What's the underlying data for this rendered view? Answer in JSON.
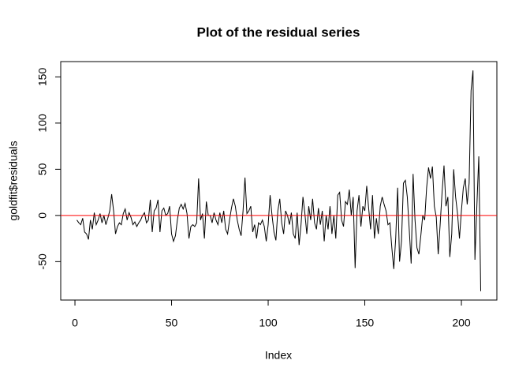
{
  "chart_data": {
    "type": "line",
    "title": "Plot of the residual series",
    "x_label": "Index",
    "y_label": "goldfit$residuals",
    "x": [
      1,
      2,
      3,
      4,
      5,
      6,
      7,
      8,
      9,
      10,
      11,
      12,
      13,
      14,
      15,
      16,
      17,
      18,
      19,
      20,
      21,
      22,
      23,
      24,
      25,
      26,
      27,
      28,
      29,
      30,
      31,
      32,
      33,
      34,
      35,
      36,
      37,
      38,
      39,
      40,
      41,
      42,
      43,
      44,
      45,
      46,
      47,
      48,
      49,
      50,
      51,
      52,
      53,
      54,
      55,
      56,
      57,
      58,
      59,
      60,
      61,
      62,
      63,
      64,
      65,
      66,
      67,
      68,
      69,
      70,
      71,
      72,
      73,
      74,
      75,
      76,
      77,
      78,
      79,
      80,
      81,
      82,
      83,
      84,
      85,
      86,
      87,
      88,
      89,
      90,
      91,
      92,
      93,
      94,
      95,
      96,
      97,
      98,
      99,
      100,
      101,
      102,
      103,
      104,
      105,
      106,
      107,
      108,
      109,
      110,
      111,
      112,
      113,
      114,
      115,
      116,
      117,
      118,
      119,
      120,
      121,
      122,
      123,
      124,
      125,
      126,
      127,
      128,
      129,
      130,
      131,
      132,
      133,
      134,
      135,
      136,
      137,
      138,
      139,
      140,
      141,
      142,
      143,
      144,
      145,
      146,
      147,
      148,
      149,
      150,
      151,
      152,
      153,
      154,
      155,
      156,
      157,
      158,
      159,
      160,
      161,
      162,
      163,
      164,
      165,
      166,
      167,
      168,
      169,
      170,
      171,
      172,
      173,
      174,
      175,
      176,
      177,
      178,
      179,
      180,
      181,
      182,
      183,
      184,
      185,
      186,
      187,
      188,
      189,
      190,
      191,
      192,
      193,
      194,
      195,
      196,
      197,
      198,
      199,
      200,
      201,
      202,
      203,
      204,
      205,
      206,
      207,
      208,
      209,
      210
    ],
    "series": [
      {
        "name": "residuals",
        "color": "#000000",
        "values": [
          -5,
          -8,
          -10,
          -3,
          -18,
          -20,
          -26,
          -5,
          -15,
          3,
          -10,
          -5,
          2,
          -8,
          0,
          -10,
          -3,
          5,
          23,
          5,
          -20,
          -12,
          -8,
          -10,
          2,
          7,
          -5,
          3,
          -2,
          -10,
          -7,
          -12,
          -8,
          -5,
          0,
          3,
          -8,
          -5,
          17,
          -18,
          5,
          8,
          17,
          -18,
          5,
          8,
          0,
          2,
          10,
          -20,
          -28,
          -22,
          -5,
          8,
          12,
          7,
          13,
          2,
          -25,
          -12,
          -10,
          -12,
          -8,
          40,
          -5,
          2,
          -25,
          15,
          0,
          0,
          -8,
          3,
          -5,
          -10,
          3,
          -8,
          5,
          -15,
          -20,
          -5,
          8,
          18,
          10,
          -5,
          -15,
          -22,
          5,
          41,
          2,
          5,
          10,
          -18,
          -10,
          -25,
          -8,
          -10,
          -5,
          -12,
          -28,
          -10,
          22,
          0,
          -18,
          -27,
          5,
          18,
          -8,
          -20,
          5,
          0,
          -10,
          3,
          -20,
          -25,
          3,
          -32,
          -10,
          20,
          2,
          -20,
          10,
          -5,
          18,
          -8,
          -15,
          8,
          -10,
          5,
          -28,
          0,
          -15,
          10,
          -20,
          0,
          -25,
          22,
          25,
          -5,
          -12,
          15,
          12,
          28,
          0,
          20,
          -57,
          5,
          22,
          -12,
          10,
          5,
          32,
          8,
          -15,
          22,
          -25,
          -3,
          -20,
          10,
          20,
          12,
          5,
          -10,
          -8,
          -35,
          -58,
          -25,
          30,
          -50,
          -28,
          35,
          38,
          20,
          -15,
          -52,
          45,
          -5,
          -35,
          -42,
          -22,
          0,
          -5,
          30,
          52,
          40,
          53,
          10,
          -2,
          -42,
          -10,
          25,
          54,
          10,
          20,
          -45,
          -20,
          50,
          20,
          2,
          -25,
          5,
          30,
          40,
          12,
          35,
          135,
          157,
          -48,
          10,
          64,
          -82
        ]
      }
    ],
    "reference_line": {
      "value": 0,
      "color": "#ff0000"
    },
    "xlim": [
      -7.36,
      218.36
    ],
    "ylim": [
      -91.6,
      166.6
    ],
    "xticks": [
      0,
      50,
      100,
      150,
      200
    ],
    "yticks": [
      -50,
      0,
      50,
      100,
      150
    ]
  }
}
